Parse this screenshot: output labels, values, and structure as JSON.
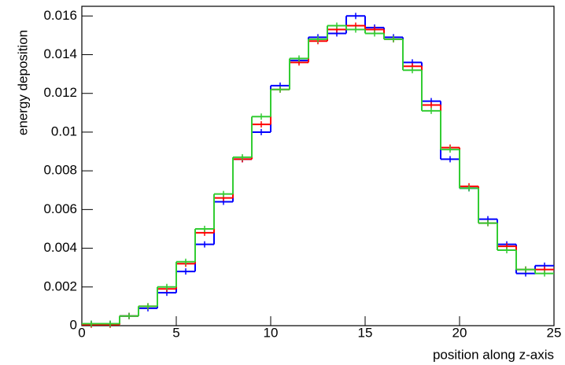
{
  "chart_data": {
    "type": "histogram",
    "xlabel": "position along z-axis",
    "ylabel": "energy deposition",
    "bins": [
      0,
      1,
      2,
      3,
      4,
      5,
      6,
      7,
      8,
      9,
      10,
      11,
      12,
      13,
      14,
      15,
      16,
      17,
      18,
      19,
      20,
      21,
      22,
      23,
      24,
      25
    ],
    "series": [
      {
        "color": "#0000ff",
        "values": [
          0.0001,
          0.0001,
          0.0005,
          0.0009,
          0.0017,
          0.0028,
          0.0042,
          0.0064,
          0.0086,
          0.01,
          0.0124,
          0.0137,
          0.0149,
          0.0151,
          0.016,
          0.0154,
          0.0149,
          0.0136,
          0.0116,
          0.0086,
          0.0071,
          0.0055,
          0.0042,
          0.0027,
          0.0031
        ]
      },
      {
        "color": "#ff0000",
        "values": [
          5e-05,
          5e-05,
          0.0005,
          0.001,
          0.0019,
          0.0032,
          0.0048,
          0.0066,
          0.0086,
          0.0104,
          0.0122,
          0.0136,
          0.0147,
          0.0153,
          0.0155,
          0.0153,
          0.0148,
          0.0134,
          0.0114,
          0.0092,
          0.0072,
          0.0053,
          0.0041,
          0.0029,
          0.0029
        ]
      },
      {
        "color": "#33cc33",
        "values": [
          0.0001,
          0.0001,
          0.0005,
          0.001,
          0.002,
          0.0033,
          0.005,
          0.0068,
          0.0087,
          0.0108,
          0.0122,
          0.0138,
          0.0148,
          0.0155,
          0.0153,
          0.0151,
          0.0148,
          0.0132,
          0.0111,
          0.0091,
          0.0071,
          0.0053,
          0.0039,
          0.0029,
          0.0027
        ]
      }
    ],
    "xlim": [
      0,
      25
    ],
    "xticks": [
      0,
      5,
      10,
      15,
      20,
      25
    ],
    "ylim": [
      0,
      0.0165
    ],
    "yticks": [
      0,
      0.002,
      0.004,
      0.006,
      0.008,
      0.01,
      0.012,
      0.014,
      0.016
    ],
    "grid": false
  }
}
